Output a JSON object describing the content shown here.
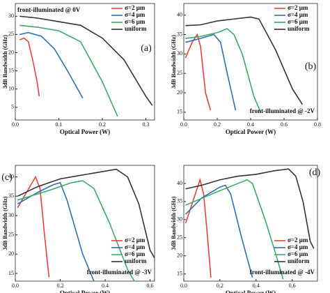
{
  "chart_data": [
    {
      "type": "line",
      "title": "front-illuminated @ 0V",
      "title_corner": "top-left",
      "panel_label": "(a)",
      "xlabel": "Optical Power (W)",
      "ylabel": "3dB Bandwidth (GHz)",
      "xlim": [
        0,
        0.32
      ],
      "ylim": [
        1.5,
        33.5
      ],
      "xticks": [
        {
          "value": 0,
          "label": "0.0"
        },
        0.1,
        0.2,
        0.3
      ],
      "yticks": [
        5,
        10,
        15,
        20,
        25,
        30
      ],
      "legend": "top-right",
      "series": [
        {
          "name": "σ=2 μm",
          "color": "#e8413c",
          "x": [
            0.01,
            0.02,
            0.03,
            0.04,
            0.05,
            0.055
          ],
          "values": [
            23.5,
            24,
            23,
            18,
            12,
            8
          ]
        },
        {
          "name": "σ=4 μm",
          "color": "#2f6fb5",
          "x": [
            0.01,
            0.03,
            0.06,
            0.09,
            0.12,
            0.155
          ],
          "values": [
            25,
            25.5,
            24.5,
            21,
            15,
            7.5
          ]
        },
        {
          "name": "σ=6 μm",
          "color": "#3aaa6a",
          "x": [
            0.01,
            0.05,
            0.1,
            0.15,
            0.2,
            0.235
          ],
          "values": [
            27.5,
            27,
            26,
            23,
            12,
            2.5
          ]
        },
        {
          "name": "uniform",
          "color": "#333333",
          "x": [
            0.01,
            0.05,
            0.1,
            0.15,
            0.2,
            0.25,
            0.3,
            0.315
          ],
          "values": [
            30,
            29.5,
            28.5,
            27.5,
            24,
            18,
            8,
            5.5
          ]
        }
      ]
    },
    {
      "type": "line",
      "title": "front-illuminated @ -2V",
      "title_corner": "bottom-right",
      "panel_label": "(b)",
      "xlabel": "Optical Power (W)",
      "ylabel": "3dB Bandwidth (GHz)",
      "xlim": [
        0,
        0.8
      ],
      "ylim": [
        13,
        43
      ],
      "xticks": [
        {
          "value": 0,
          "label": "0.0"
        },
        0.2,
        0.4,
        0.6,
        0.8
      ],
      "yticks": [
        15,
        20,
        25,
        30,
        35,
        40
      ],
      "legend": "top-right",
      "series": [
        {
          "name": "σ=2 μm",
          "color": "#e8413c",
          "x": [
            0.01,
            0.05,
            0.08,
            0.1,
            0.13,
            0.16
          ],
          "values": [
            29,
            33,
            35,
            32,
            20,
            15.5
          ]
        },
        {
          "name": "σ=4 μm",
          "color": "#2f6fb5",
          "x": [
            0.01,
            0.1,
            0.18,
            0.22,
            0.26,
            0.31
          ],
          "values": [
            33,
            34,
            35,
            33,
            25,
            15.5
          ]
        },
        {
          "name": "σ=6 μm",
          "color": "#3aaa6a",
          "x": [
            0.01,
            0.1,
            0.2,
            0.26,
            0.3,
            0.35,
            0.42,
            0.46
          ],
          "values": [
            34,
            34.5,
            35.5,
            36.5,
            35,
            30,
            19,
            15
          ]
        },
        {
          "name": "uniform",
          "color": "#333333",
          "x": [
            0.01,
            0.1,
            0.2,
            0.3,
            0.4,
            0.45,
            0.55,
            0.65,
            0.71
          ],
          "values": [
            37.3,
            37.5,
            38.5,
            39,
            39.5,
            39,
            31,
            21,
            17
          ]
        }
      ]
    },
    {
      "type": "line",
      "title": "front-illuminated @ -3V",
      "title_corner": "bottom-right",
      "panel_label": "(c)",
      "xlabel": "Optical Power (W)",
      "ylabel": "3dB Bandwidth (GHz)",
      "xlim": [
        0,
        0.62
      ],
      "ylim": [
        13,
        43
      ],
      "xticks": [
        {
          "value": 0,
          "label": "0.0"
        },
        0.2,
        0.4,
        0.6
      ],
      "yticks": [
        15,
        20,
        25,
        30,
        35,
        40
      ],
      "legend": "bottom-right",
      "series": [
        {
          "name": "σ=2 μm",
          "color": "#e8413c",
          "x": [
            0.01,
            0.05,
            0.09,
            0.11,
            0.13,
            0.15
          ],
          "values": [
            32,
            36,
            40,
            37,
            25,
            14
          ]
        },
        {
          "name": "σ=4 μm",
          "color": "#2f6fb5",
          "x": [
            0.01,
            0.1,
            0.17,
            0.2,
            0.23,
            0.3,
            0.35
          ],
          "values": [
            33,
            36,
            38,
            38.5,
            34,
            20,
            13
          ]
        },
        {
          "name": "σ=6 μm",
          "color": "#3aaa6a",
          "x": [
            0.01,
            0.15,
            0.25,
            0.3,
            0.35,
            0.42,
            0.5,
            0.53
          ],
          "values": [
            34,
            36.5,
            38.5,
            39,
            37,
            28,
            16,
            13
          ]
        },
        {
          "name": "uniform",
          "color": "#333333",
          "x": [
            0.01,
            0.1,
            0.2,
            0.3,
            0.4,
            0.45,
            0.5,
            0.55,
            0.6,
            0.62
          ],
          "values": [
            35,
            37.5,
            39.5,
            40.5,
            41.5,
            42,
            40,
            33,
            21,
            19
          ]
        }
      ]
    },
    {
      "type": "line",
      "title": "front-illuminated @ -4V",
      "title_corner": "bottom-right",
      "panel_label": "(d)",
      "xlabel": "Optical Power (W)",
      "ylabel": "3dB Bandwidth (GHz)",
      "xlim": [
        0,
        0.74
      ],
      "ylim": [
        13,
        45
      ],
      "xticks": [
        {
          "value": 0,
          "label": "0.0"
        },
        0.2,
        0.4,
        0.6
      ],
      "yticks": [
        15,
        20,
        25,
        30,
        35,
        40
      ],
      "legend": "bottom-right",
      "series": [
        {
          "name": "σ=2 μm",
          "color": "#e8413c",
          "x": [
            0.01,
            0.05,
            0.09,
            0.11,
            0.13,
            0.15
          ],
          "values": [
            29,
            35,
            41,
            37,
            26,
            14
          ]
        },
        {
          "name": "σ=4 μm",
          "color": "#2f6fb5",
          "x": [
            0.01,
            0.1,
            0.2,
            0.23,
            0.26,
            0.32,
            0.38
          ],
          "values": [
            31.5,
            36,
            39,
            39.5,
            37,
            25,
            14
          ]
        },
        {
          "name": "σ=6 μm",
          "color": "#3aaa6a",
          "x": [
            0.01,
            0.2,
            0.3,
            0.35,
            0.38,
            0.45,
            0.5,
            0.55
          ],
          "values": [
            34,
            38,
            40,
            41,
            40,
            30,
            22,
            13.5
          ]
        },
        {
          "name": "uniform",
          "color": "#333333",
          "x": [
            0.01,
            0.1,
            0.2,
            0.3,
            0.4,
            0.5,
            0.58,
            0.62,
            0.66,
            0.7,
            0.72
          ],
          "values": [
            38.5,
            39.5,
            41,
            42,
            42.5,
            43.5,
            44,
            42,
            35,
            24,
            22
          ]
        }
      ]
    }
  ]
}
